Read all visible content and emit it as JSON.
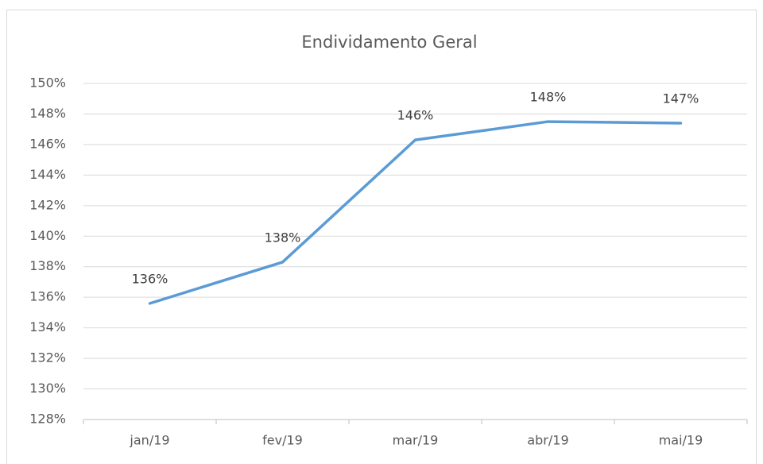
{
  "chart_data": {
    "type": "line",
    "title": "Endividamento Geral",
    "categories": [
      "jan/19",
      "fev/19",
      "mar/19",
      "abr/19",
      "mai/19"
    ],
    "series": [
      {
        "name": "Endividamento Geral",
        "color": "#5b9bd5",
        "values": [
          135.6,
          138.3,
          146.3,
          147.5,
          147.4
        ],
        "value_labels": [
          "136%",
          "138%",
          "146%",
          "148%",
          "147%"
        ]
      }
    ],
    "ylim": [
      128,
      150
    ],
    "yticks": [
      {
        "value": 128,
        "label": "128%"
      },
      {
        "value": 130,
        "label": "130%"
      },
      {
        "value": 132,
        "label": "132%"
      },
      {
        "value": 134,
        "label": "134%"
      },
      {
        "value": 136,
        "label": "136%"
      },
      {
        "value": 138,
        "label": "138%"
      },
      {
        "value": 140,
        "label": "140%"
      },
      {
        "value": 142,
        "label": "142%"
      },
      {
        "value": 144,
        "label": "144%"
      },
      {
        "value": 146,
        "label": "146%"
      },
      {
        "value": 148,
        "label": "148%"
      },
      {
        "value": 150,
        "label": "150%"
      }
    ],
    "grid": true
  }
}
